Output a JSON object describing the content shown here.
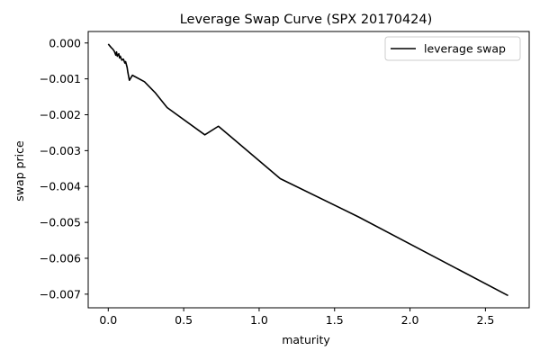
{
  "chart_data": {
    "type": "line",
    "title": "Leverage Swap Curve (SPX 20170424)",
    "xlabel": "maturity",
    "ylabel": "swap price",
    "xlim": [
      -0.133,
      2.79
    ],
    "ylim": [
      -0.00738,
      0.00032
    ],
    "xticks": [
      0.0,
      0.5,
      1.0,
      1.5,
      2.0,
      2.5
    ],
    "xtick_labels": [
      "0.0",
      "0.5",
      "1.0",
      "1.5",
      "2.0",
      "2.5"
    ],
    "yticks": [
      0.0,
      -0.001,
      -0.002,
      -0.003,
      -0.004,
      -0.005,
      -0.006,
      -0.007
    ],
    "ytick_labels": [
      "0.000",
      "−0.001",
      "−0.002",
      "−0.003",
      "−0.004",
      "−0.005",
      "−0.006",
      "−0.007"
    ],
    "legend": {
      "position": "top-right"
    },
    "grid": false,
    "series": [
      {
        "name": "leverage swap",
        "color": "#000000",
        "x": [
          0.0,
          0.02,
          0.03,
          0.04,
          0.05,
          0.055,
          0.06,
          0.07,
          0.075,
          0.08,
          0.09,
          0.1,
          0.11,
          0.115,
          0.125,
          0.13,
          0.14,
          0.15,
          0.16,
          0.24,
          0.31,
          0.39,
          0.64,
          0.73,
          1.14,
          1.66,
          2.65
        ],
        "y": [
          -3e-05,
          -0.00013,
          -0.00017,
          -0.00023,
          -0.00034,
          -0.00025,
          -0.00037,
          -0.0003,
          -0.00042,
          -0.00037,
          -0.00048,
          -0.00045,
          -0.00056,
          -0.00052,
          -0.00068,
          -0.00082,
          -0.00104,
          -0.00097,
          -0.0009,
          -0.00108,
          -0.00138,
          -0.0018,
          -0.00256,
          -0.00232,
          -0.00378,
          -0.00485,
          -0.00704
        ]
      }
    ]
  }
}
